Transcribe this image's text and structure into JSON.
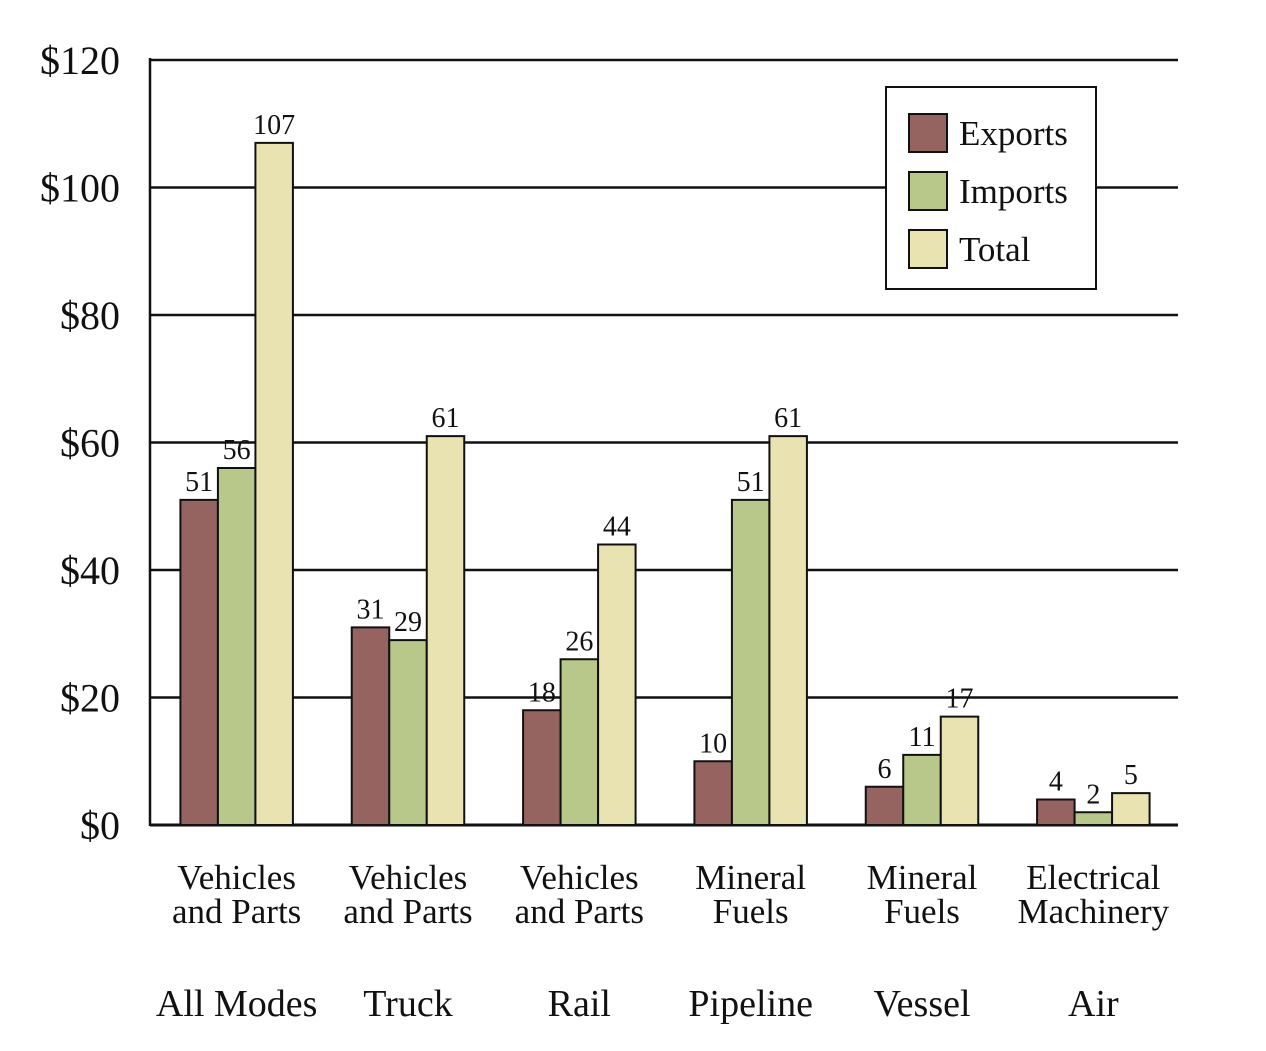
{
  "chart_data": {
    "type": "bar",
    "title": "",
    "xlabel": "",
    "ylabel": "",
    "ylim": [
      0,
      120
    ],
    "yticks": [
      "$0",
      "$20",
      "$40",
      "$60",
      "$80",
      "$100",
      "$120"
    ],
    "grid": true,
    "legend_position": "top-right",
    "groups": [
      {
        "category": [
          "Vehicles",
          "and Parts"
        ],
        "mode": "All Modes"
      },
      {
        "category": [
          "Vehicles",
          "and Parts"
        ],
        "mode": "Truck"
      },
      {
        "category": [
          "Vehicles",
          "and Parts"
        ],
        "mode": "Rail"
      },
      {
        "category": [
          "Mineral",
          "Fuels"
        ],
        "mode": "Pipeline"
      },
      {
        "category": [
          "Mineral",
          "Fuels"
        ],
        "mode": "Vessel"
      },
      {
        "category": [
          "Electrical",
          "Machinery"
        ],
        "mode": "Air"
      }
    ],
    "series": [
      {
        "name": "Exports",
        "color": "#956460",
        "values": [
          51,
          31,
          18,
          10,
          6,
          4
        ],
        "labels": [
          "51",
          "31",
          "18",
          "10",
          "6",
          "4"
        ]
      },
      {
        "name": "Imports",
        "color": "#b7c88a",
        "values": [
          56,
          29,
          26,
          51,
          11,
          2
        ],
        "labels": [
          "56",
          "29",
          "26",
          "51",
          "11",
          "2"
        ]
      },
      {
        "name": "Total",
        "color": "#e8e3b0",
        "values": [
          107,
          61,
          44,
          61,
          17,
          5
        ],
        "labels": [
          "107",
          "61",
          "44",
          "61",
          "17",
          "5"
        ]
      }
    ]
  }
}
